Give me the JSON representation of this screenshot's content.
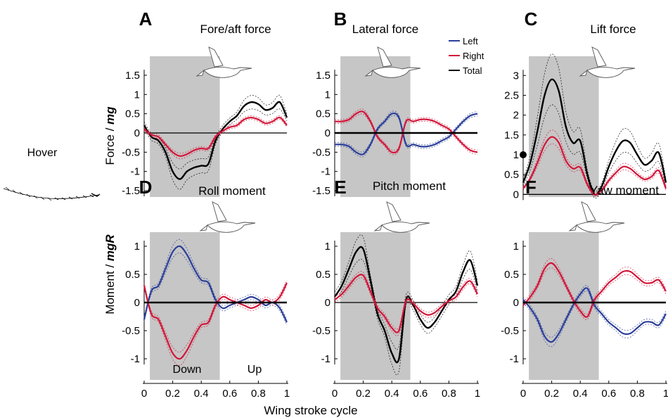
{
  "figure": {
    "side_label": "Hover",
    "x_axis_label": "Wing stroke cycle",
    "force_ylabel_prefix": "Force / ",
    "force_ylabel_em": "mg",
    "moment_ylabel_prefix": "Moment / ",
    "moment_ylabel_em": "mgR",
    "phase_down": "Down",
    "phase_up": "Up",
    "colors": {
      "left": "#2b3f99",
      "right": "#d2163a",
      "total": "#000000",
      "shade": "#c6c6c6"
    },
    "legend": [
      {
        "key": "left",
        "label": "Left"
      },
      {
        "key": "right",
        "label": "Right"
      },
      {
        "key": "total",
        "label": "Total"
      }
    ]
  },
  "chart_data": [
    {
      "panel": "A",
      "title": "Fore/aft force",
      "type": "line",
      "xlim": [
        0,
        1
      ],
      "ylim": [
        -1.7,
        1.7
      ],
      "xticks": [],
      "yticks": [
        "1.5",
        "1",
        "0.5",
        "0",
        "-0.5",
        "-1",
        "-1.5"
      ],
      "yticks_values": [
        1.5,
        1,
        0.5,
        0,
        -0.5,
        -1,
        -1.5
      ],
      "downstroke": [
        0.04,
        0.53
      ],
      "x": [
        0,
        0.05,
        0.1,
        0.15,
        0.2,
        0.25,
        0.3,
        0.35,
        0.4,
        0.45,
        0.5,
        0.55,
        0.6,
        0.65,
        0.7,
        0.75,
        0.8,
        0.85,
        0.9,
        0.95,
        1
      ],
      "series": [
        {
          "name": "Total",
          "key": "total",
          "values": [
            0.2,
            -0.1,
            -0.2,
            -0.5,
            -1.0,
            -1.2,
            -1.0,
            -0.9,
            -0.85,
            -0.8,
            -0.2,
            0.1,
            0.3,
            0.45,
            0.7,
            0.8,
            0.75,
            0.6,
            0.65,
            0.8,
            0.4
          ]
        },
        {
          "key": "right",
          "values": [
            0.1,
            -0.05,
            -0.1,
            -0.3,
            -0.5,
            -0.6,
            -0.55,
            -0.45,
            -0.4,
            -0.4,
            -0.1,
            0.05,
            0.15,
            0.2,
            0.35,
            0.4,
            0.35,
            0.25,
            0.3,
            0.4,
            0.2
          ]
        }
      ]
    },
    {
      "panel": "B",
      "title": "Lateral force",
      "type": "line",
      "xlim": [
        0,
        1
      ],
      "ylim": [
        -1.7,
        1.7
      ],
      "xticks": [],
      "yticks": [
        "1.5",
        "1",
        "0.5",
        "0",
        "-0.5",
        "-1",
        "-1.5"
      ],
      "yticks_values": [
        1.5,
        1,
        0.5,
        0,
        -0.5,
        -1,
        -1.5
      ],
      "downstroke": [
        0.04,
        0.53
      ],
      "x": [
        0,
        0.05,
        0.1,
        0.15,
        0.2,
        0.25,
        0.3,
        0.35,
        0.4,
        0.45,
        0.5,
        0.55,
        0.6,
        0.65,
        0.7,
        0.75,
        0.8,
        0.85,
        0.9,
        0.95,
        1
      ],
      "series": [
        {
          "name": "Left",
          "key": "left",
          "values": [
            -0.3,
            -0.3,
            -0.35,
            -0.5,
            -0.55,
            -0.3,
            0.1,
            0.3,
            0.5,
            0.4,
            -0.3,
            -0.3,
            -0.35,
            -0.35,
            -0.3,
            -0.2,
            -0.1,
            0.1,
            0.3,
            0.45,
            0.5
          ]
        },
        {
          "name": "Right",
          "key": "right",
          "values": [
            0.3,
            0.3,
            0.35,
            0.5,
            0.55,
            0.3,
            -0.1,
            -0.3,
            -0.5,
            -0.4,
            0.3,
            0.3,
            0.35,
            0.35,
            0.3,
            0.2,
            0.1,
            -0.1,
            -0.3,
            -0.45,
            -0.5
          ]
        },
        {
          "name": "Total",
          "key": "total",
          "values": [
            0,
            0,
            0,
            0,
            0,
            0,
            0,
            0,
            0,
            0,
            0,
            0,
            0,
            0,
            0,
            0,
            0,
            0,
            0,
            0,
            0
          ]
        }
      ]
    },
    {
      "panel": "C",
      "title": "Lift force",
      "type": "line",
      "xlim": [
        0,
        1
      ],
      "ylim": [
        -0.1,
        3.2
      ],
      "xticks": [],
      "yticks": [
        "3",
        "2.5",
        "2",
        "1.5",
        "1",
        "0.5",
        "0"
      ],
      "yticks_values": [
        3,
        2.5,
        2,
        1.5,
        1,
        0.5,
        0
      ],
      "downstroke": [
        0.04,
        0.53
      ],
      "marker_y": 1,
      "x": [
        0,
        0.05,
        0.1,
        0.15,
        0.2,
        0.25,
        0.3,
        0.35,
        0.4,
        0.45,
        0.5,
        0.55,
        0.6,
        0.65,
        0.7,
        0.75,
        0.8,
        0.85,
        0.9,
        0.95,
        1
      ],
      "series": [
        {
          "key": "total",
          "values": [
            0.3,
            0.8,
            1.6,
            2.5,
            2.9,
            2.6,
            1.7,
            1.3,
            1.35,
            0.5,
            0.0,
            0.2,
            0.7,
            1.1,
            1.35,
            1.3,
            1.0,
            0.75,
            0.85,
            1.05,
            0.3
          ]
        },
        {
          "key": "right",
          "values": [
            0.15,
            0.4,
            0.8,
            1.25,
            1.45,
            1.3,
            0.85,
            0.65,
            0.68,
            0.25,
            0.0,
            0.1,
            0.35,
            0.55,
            0.7,
            0.65,
            0.5,
            0.38,
            0.45,
            0.6,
            0.15
          ]
        }
      ]
    },
    {
      "panel": "D",
      "title": "Roll moment",
      "type": "line",
      "xlim": [
        0,
        1
      ],
      "ylim": [
        -1.25,
        1.25
      ],
      "xticks": [
        "0",
        "0.2",
        "0.4",
        "0.6",
        "0.8",
        "1"
      ],
      "xticks_values": [
        0,
        0.2,
        0.4,
        0.6,
        0.8,
        1
      ],
      "yticks": [
        "1",
        "0.5",
        "0",
        "-0.5",
        "-1"
      ],
      "yticks_values": [
        1,
        0.5,
        0,
        -0.5,
        -1
      ],
      "downstroke": [
        0.04,
        0.53
      ],
      "x": [
        0,
        0.05,
        0.1,
        0.15,
        0.2,
        0.25,
        0.3,
        0.35,
        0.4,
        0.45,
        0.5,
        0.55,
        0.6,
        0.65,
        0.7,
        0.75,
        0.8,
        0.85,
        0.9,
        0.95,
        1
      ],
      "series": [
        {
          "key": "left",
          "values": [
            -0.3,
            0.2,
            0.3,
            0.6,
            0.9,
            1.0,
            0.85,
            0.6,
            0.4,
            0.35,
            0.05,
            -0.1,
            -0.05,
            0,
            0.05,
            0.1,
            0.05,
            -0.05,
            0,
            -0.1,
            -0.35
          ]
        },
        {
          "key": "right",
          "values": [
            0.3,
            -0.2,
            -0.3,
            -0.6,
            -0.9,
            -1.0,
            -0.85,
            -0.6,
            -0.4,
            -0.35,
            -0.05,
            0.1,
            0.05,
            0,
            -0.05,
            -0.1,
            -0.05,
            0.05,
            0,
            0.1,
            0.35
          ]
        },
        {
          "key": "total",
          "values": [
            0,
            0,
            0,
            0,
            0,
            0,
            0,
            0,
            0,
            0,
            0,
            0,
            0,
            0,
            0,
            0,
            0,
            0,
            0,
            0,
            0
          ]
        }
      ]
    },
    {
      "panel": "E",
      "title": "Pitch moment",
      "type": "line",
      "xlim": [
        0,
        1
      ],
      "ylim": [
        -1.25,
        1.25
      ],
      "xticks": [
        "0",
        "0.2",
        "0.4",
        "0.6",
        "0.8",
        "1"
      ],
      "xticks_values": [
        0,
        0.2,
        0.4,
        0.6,
        0.8,
        1
      ],
      "yticks": [
        "1",
        "0.5",
        "0",
        "-0.5",
        "-1"
      ],
      "yticks_values": [
        1,
        0.5,
        0,
        -0.5,
        -1
      ],
      "downstroke": [
        0.04,
        0.53
      ],
      "x": [
        0,
        0.05,
        0.1,
        0.15,
        0.2,
        0.25,
        0.3,
        0.35,
        0.4,
        0.45,
        0.5,
        0.55,
        0.6,
        0.65,
        0.7,
        0.75,
        0.8,
        0.85,
        0.9,
        0.95,
        1
      ],
      "series": [
        {
          "key": "total",
          "values": [
            0.1,
            0.3,
            0.6,
            0.9,
            0.95,
            0.4,
            -0.2,
            -0.5,
            -0.9,
            -1.0,
            0.05,
            -0.05,
            -0.3,
            -0.45,
            -0.35,
            -0.15,
            0.05,
            0.2,
            0.55,
            0.75,
            0.3
          ]
        },
        {
          "key": "right",
          "values": [
            0.05,
            0.15,
            0.3,
            0.45,
            0.48,
            0.2,
            -0.1,
            -0.25,
            -0.45,
            -0.5,
            0.03,
            -0.02,
            -0.15,
            -0.22,
            -0.18,
            -0.07,
            0.03,
            0.1,
            0.28,
            0.38,
            0.15
          ]
        }
      ]
    },
    {
      "panel": "F",
      "title": "Yaw moment",
      "type": "line",
      "xlim": [
        0,
        1
      ],
      "ylim": [
        -1.25,
        1.25
      ],
      "xticks": [
        "0",
        "0.2",
        "0.4",
        "0.6",
        "0.8",
        "1"
      ],
      "xticks_values": [
        0,
        0.2,
        0.4,
        0.6,
        0.8,
        1
      ],
      "yticks": [
        "1",
        "0.5",
        "0",
        "-0.5",
        "-1"
      ],
      "yticks_values": [
        1,
        0.5,
        0,
        -0.5,
        -1
      ],
      "downstroke": [
        0.04,
        0.53
      ],
      "x": [
        0,
        0.05,
        0.1,
        0.15,
        0.2,
        0.25,
        0.3,
        0.35,
        0.4,
        0.45,
        0.5,
        0.55,
        0.6,
        0.65,
        0.7,
        0.75,
        0.8,
        0.85,
        0.9,
        0.95,
        1
      ],
      "series": [
        {
          "key": "left",
          "values": [
            0.05,
            -0.1,
            -0.3,
            -0.6,
            -0.7,
            -0.55,
            -0.3,
            -0.05,
            0.15,
            0.25,
            -0.05,
            -0.2,
            -0.35,
            -0.45,
            -0.55,
            -0.55,
            -0.45,
            -0.35,
            -0.35,
            -0.4,
            -0.2
          ]
        },
        {
          "key": "right",
          "values": [
            -0.05,
            0.1,
            0.3,
            0.6,
            0.7,
            0.55,
            0.3,
            0.05,
            -0.15,
            -0.25,
            0.05,
            0.2,
            0.35,
            0.45,
            0.55,
            0.55,
            0.45,
            0.35,
            0.35,
            0.4,
            0.2
          ]
        },
        {
          "key": "total",
          "values": [
            0,
            0,
            0,
            0,
            0,
            0,
            0,
            0,
            0,
            0,
            0,
            0,
            0,
            0,
            0,
            0,
            0,
            0,
            0,
            0,
            0
          ]
        }
      ]
    }
  ]
}
